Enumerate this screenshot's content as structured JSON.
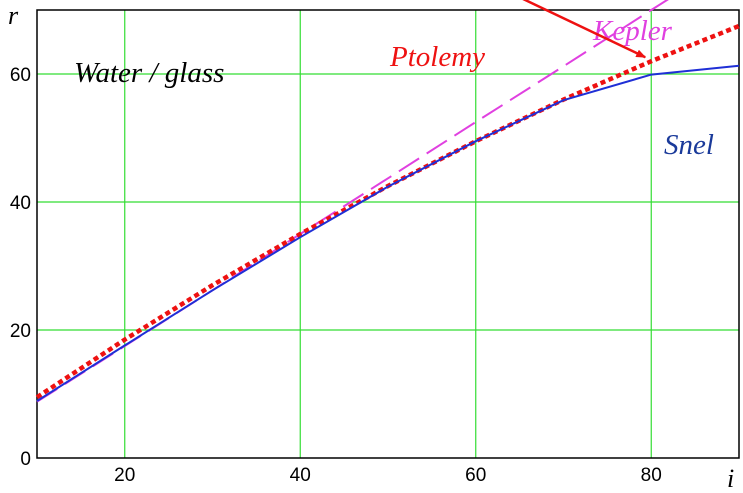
{
  "chart_data": {
    "type": "line",
    "title": "",
    "annotation_text": "Water / glass",
    "xlabel": "i",
    "ylabel": "r",
    "xlim": [
      10,
      90
    ],
    "ylim": [
      0,
      70
    ],
    "x_ticks": [
      20,
      40,
      60,
      80
    ],
    "y_ticks": [
      0,
      20,
      40,
      60
    ],
    "grid": true,
    "grid_color": "#33dd33",
    "series": [
      {
        "name": "Snel",
        "color": "#1f2fd6",
        "style": "solid",
        "x": [
          10,
          20,
          30,
          40,
          50,
          60,
          70,
          80,
          90
        ],
        "y": [
          8.9,
          17.6,
          26.2,
          34.5,
          42.4,
          49.5,
          55.9,
          59.9,
          61.3
        ]
      },
      {
        "name": "Ptolemy",
        "color": "#ee1111",
        "style": "dotted",
        "x": [
          10,
          20,
          30,
          40,
          50,
          60,
          70,
          80,
          90
        ],
        "y": [
          9.5,
          18.5,
          27,
          35,
          42.5,
          49.5,
          56,
          62,
          67.5
        ]
      },
      {
        "name": "Kepler",
        "color": "#e040e0",
        "style": "dashed",
        "x": [
          10,
          20,
          30,
          40,
          50,
          60,
          70,
          80,
          90
        ],
        "y": [
          8.8,
          17.5,
          26.2,
          35,
          43.7,
          52.5,
          61.2,
          70,
          78.7
        ]
      }
    ],
    "arrow": {
      "label": "Ptolemy",
      "from": [
        73,
        76
      ],
      "to": [
        80,
        62
      ],
      "color": "#ee1111"
    }
  }
}
